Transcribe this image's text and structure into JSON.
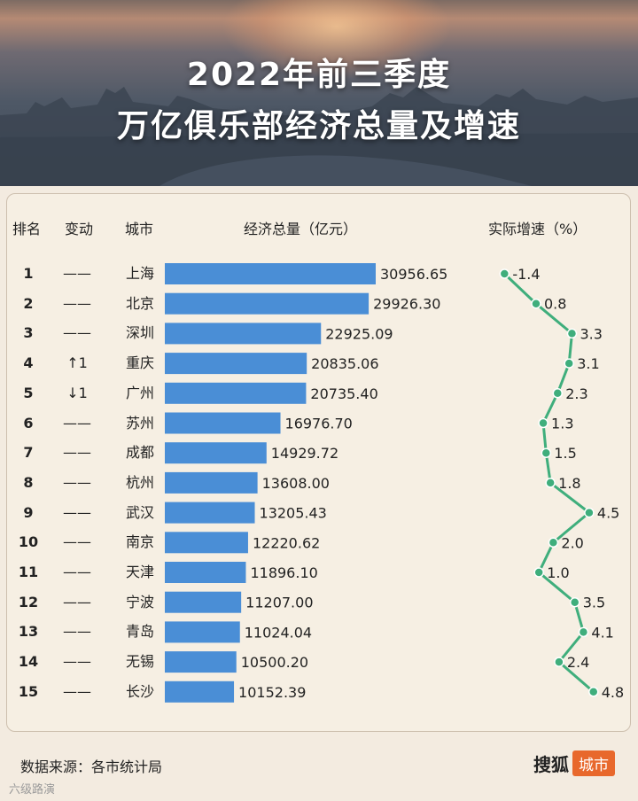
{
  "title_line1": "2022年前三季度",
  "title_line2": "万亿俱乐部经济总量及增速",
  "columns": {
    "rank": "排名",
    "change": "变动",
    "city": "城市",
    "gdp": "经济总量（亿元）",
    "growth": "实际增速（%）"
  },
  "chart_data": {
    "type": "bar",
    "categories": [
      "上海",
      "北京",
      "深圳",
      "重庆",
      "广州",
      "苏州",
      "成都",
      "杭州",
      "武汉",
      "南京",
      "天津",
      "宁波",
      "青岛",
      "无锡",
      "长沙"
    ],
    "ranks": [
      "1",
      "2",
      "3",
      "4",
      "5",
      "6",
      "7",
      "8",
      "9",
      "10",
      "11",
      "12",
      "13",
      "14",
      "15"
    ],
    "changes": [
      "——",
      "——",
      "——",
      "↑1",
      "↓1",
      "——",
      "——",
      "——",
      "——",
      "——",
      "——",
      "——",
      "——",
      "——",
      "——"
    ],
    "series": [
      {
        "values": [
          30956.65,
          29926.3,
          22925.09,
          20835.06,
          20735.4,
          16976.7,
          14929.72,
          13608.0,
          13205.43,
          12220.62,
          11896.1,
          11207.0,
          11024.04,
          10500.2,
          10152.39
        ]
      }
    ],
    "value_labels": [
      "30956.65",
      "29926.30",
      "22925.09",
      "20835.06",
      "20735.40",
      "16976.70",
      "14929.72",
      "13608.00",
      "13205.43",
      "12220.62",
      "11896.10",
      "11207.00",
      "11024.04",
      "10500.20",
      "10152.39"
    ],
    "growth": [
      -1.4,
      0.8,
      3.3,
      3.1,
      2.3,
      1.3,
      1.5,
      1.8,
      4.5,
      2.0,
      1.0,
      3.5,
      4.1,
      2.4,
      4.8
    ],
    "growth_labels": [
      "-1.4",
      "0.8",
      "3.3",
      "3.1",
      "2.3",
      "1.3",
      "1.5",
      "1.8",
      "4.5",
      "2.0",
      "1.0",
      "3.5",
      "4.1",
      "2.4",
      "4.8"
    ],
    "bar_color": "#4a8ed6",
    "line_color": "#3fae7c"
  },
  "source": "数据来源：各市统计局",
  "brand": {
    "main": "搜狐",
    "tag": "城市"
  },
  "watermark": "六级路演"
}
